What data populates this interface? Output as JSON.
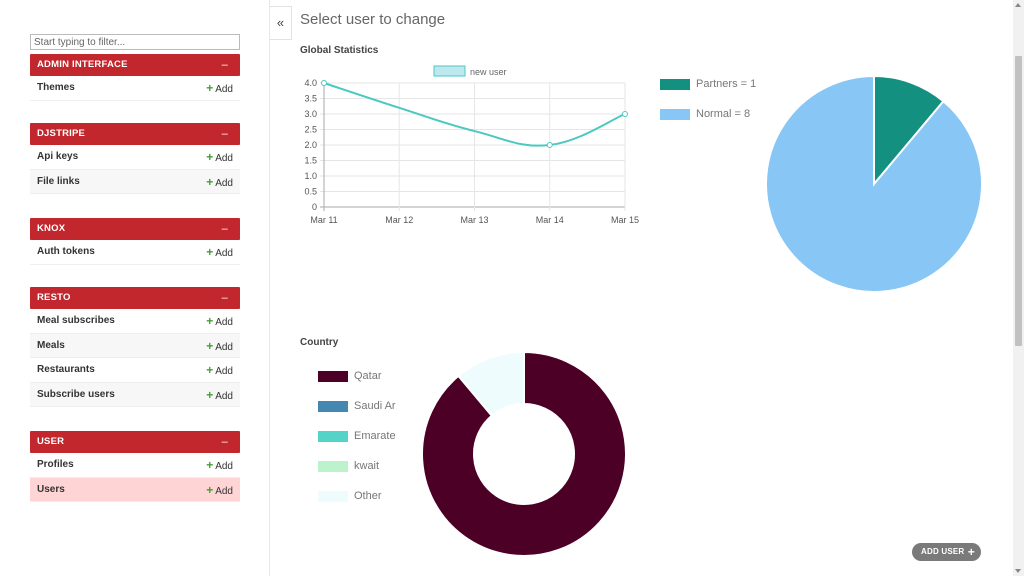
{
  "sidebar": {
    "filter_placeholder": "Start typing to filter...",
    "add_label": "Add",
    "toggle_label": "–",
    "modules": [
      {
        "title": "ADMIN INTERFACE",
        "items": [
          "Themes"
        ]
      },
      {
        "title": "DJSTRIPE",
        "items": [
          "Api keys",
          "File links"
        ]
      },
      {
        "title": "KNOX",
        "items": [
          "Auth tokens"
        ]
      },
      {
        "title": "RESTO",
        "items": [
          "Meal subscribes",
          "Meals",
          "Restaurants",
          "Subscribe users"
        ]
      },
      {
        "title": "USER",
        "items": [
          "Profiles",
          "Users"
        ]
      }
    ],
    "active_item": "Users"
  },
  "collapse_label": "«",
  "page_title": "Select user to change",
  "add_user_label": "ADD USER",
  "add_user_icon": "+",
  "colors": {
    "header_red": "#c1272d",
    "active_row": "#ffd4d4",
    "line": "#4bc8c0",
    "partners": "#149080",
    "normal": "#87c6f5",
    "qatar": "#4d0026",
    "saudi": "#4488b1",
    "emarate": "#55d3c8",
    "kwait": "#bdf3cc",
    "other": "#effcfd"
  },
  "chart_data": [
    {
      "type": "line",
      "title": "Global Statistics",
      "x": [
        "Mar 11",
        "Mar 12",
        "Mar 13",
        "Mar 14",
        "Mar 15"
      ],
      "series": [
        {
          "name": "new user",
          "values": [
            4,
            null,
            null,
            2,
            3
          ]
        }
      ],
      "ylim": [
        0,
        4
      ],
      "yticks": [
        "0",
        "0.5",
        "1.0",
        "1.5",
        "2.0",
        "2.5",
        "3.0",
        "3.5",
        "4.0"
      ],
      "grid": true,
      "legend": "top"
    },
    {
      "type": "pie",
      "categories": [
        "Partners = 1",
        "Normal = 8"
      ],
      "values": [
        1,
        8
      ],
      "legend": "left"
    },
    {
      "type": "pie",
      "title": "Country",
      "categories": [
        "Qatar",
        "Saudi Ar",
        "Emarate",
        "kwait",
        "Other"
      ],
      "values": [
        8,
        0,
        0,
        0,
        1
      ],
      "legend": "left"
    }
  ]
}
